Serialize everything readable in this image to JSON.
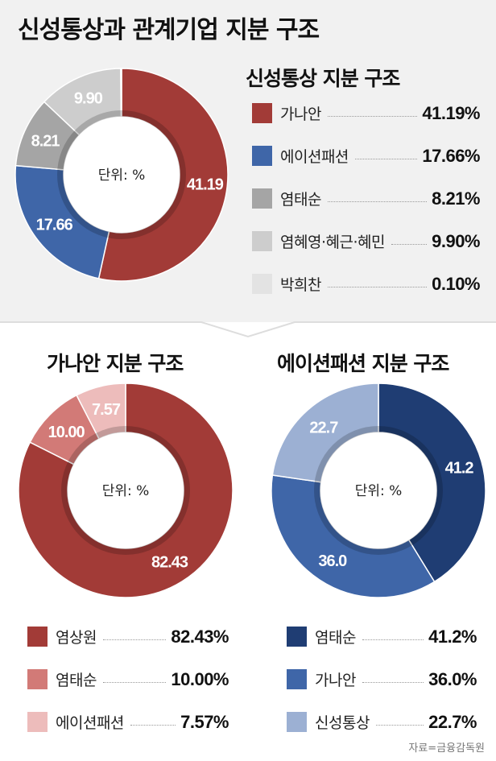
{
  "title": "신성통상과 관계기업 지분 구조",
  "unit_label": "단위: %",
  "source": "자료=금융감독원",
  "chart_data": [
    {
      "type": "pie",
      "title": "신성통상 지분 구조",
      "categories": [
        "가나안",
        "에이션패션",
        "염태순",
        "염혜영·혜근·혜민",
        "박희찬"
      ],
      "values": [
        41.19,
        17.66,
        8.21,
        9.9,
        0.1
      ],
      "data_labels": [
        "41.19",
        "17.66",
        "8.21",
        "9.90",
        ""
      ],
      "value_labels": [
        "41.19%",
        "17.66%",
        "8.21%",
        "9.90%",
        "0.10%"
      ],
      "colors": [
        "#a23b37",
        "#3f66a8",
        "#a5a5a5",
        "#cdcdcd",
        "#e3e3e3"
      ],
      "label_dark": [
        false,
        false,
        false,
        false,
        false
      ],
      "legend": "right"
    },
    {
      "type": "pie",
      "title": "가나안 지분 구조",
      "categories": [
        "염상원",
        "염태순",
        "에이션패션"
      ],
      "values": [
        82.43,
        10.0,
        7.57
      ],
      "data_labels": [
        "82.43",
        "10.00",
        "7.57"
      ],
      "value_labels": [
        "82.43%",
        "10.00%",
        "7.57%"
      ],
      "colors": [
        "#a23b37",
        "#d27a77",
        "#edbcbb"
      ],
      "label_dark": [
        false,
        false,
        false
      ],
      "legend": "bottom"
    },
    {
      "type": "pie",
      "title": "에이션패션 지분 구조",
      "categories": [
        "염태순",
        "가나안",
        "신성통상"
      ],
      "values": [
        41.2,
        36.0,
        22.7
      ],
      "data_labels": [
        "41.2",
        "36.0",
        "22.7"
      ],
      "value_labels": [
        "41.2%",
        "36.0%",
        "22.7%"
      ],
      "colors": [
        "#1f3d73",
        "#3f66a8",
        "#9cb0d3"
      ],
      "label_dark": [
        false,
        false,
        false
      ],
      "legend": "bottom"
    }
  ]
}
